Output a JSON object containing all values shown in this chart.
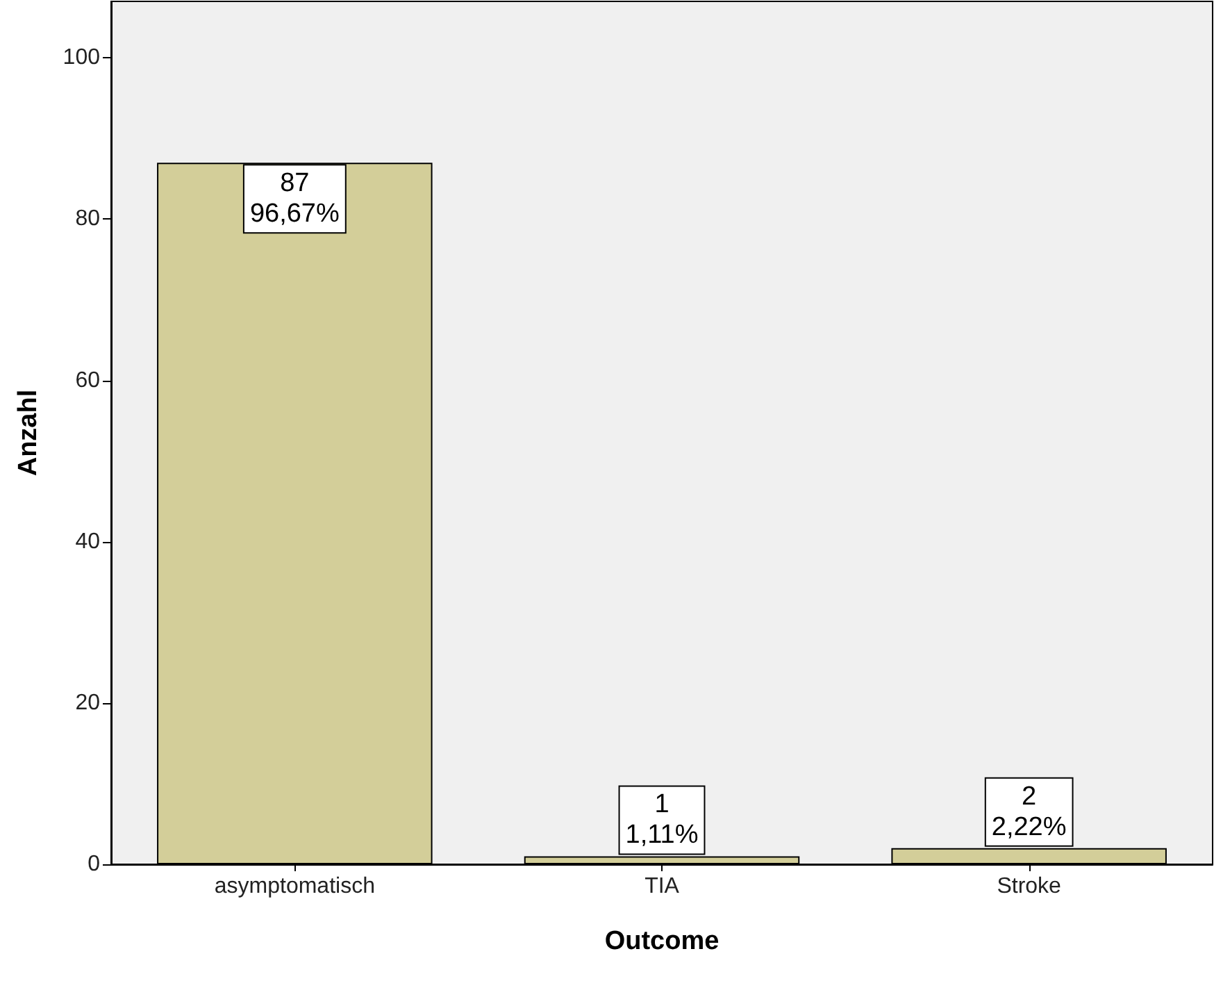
{
  "chart_data": {
    "type": "bar",
    "xlabel": "Outcome",
    "ylabel": "Anzahl",
    "categories": [
      "asymptomatisch",
      "TIA",
      "Stroke"
    ],
    "values": [
      87,
      1,
      2
    ],
    "color": "#d3ce99",
    "value_labels": [
      "87\n96,67%",
      "1\n1,11%",
      "2\n2,22%"
    ],
    "ylim": [
      0,
      107
    ],
    "yticks": [
      0,
      20,
      40,
      60,
      80,
      100
    ],
    "grid": false
  }
}
